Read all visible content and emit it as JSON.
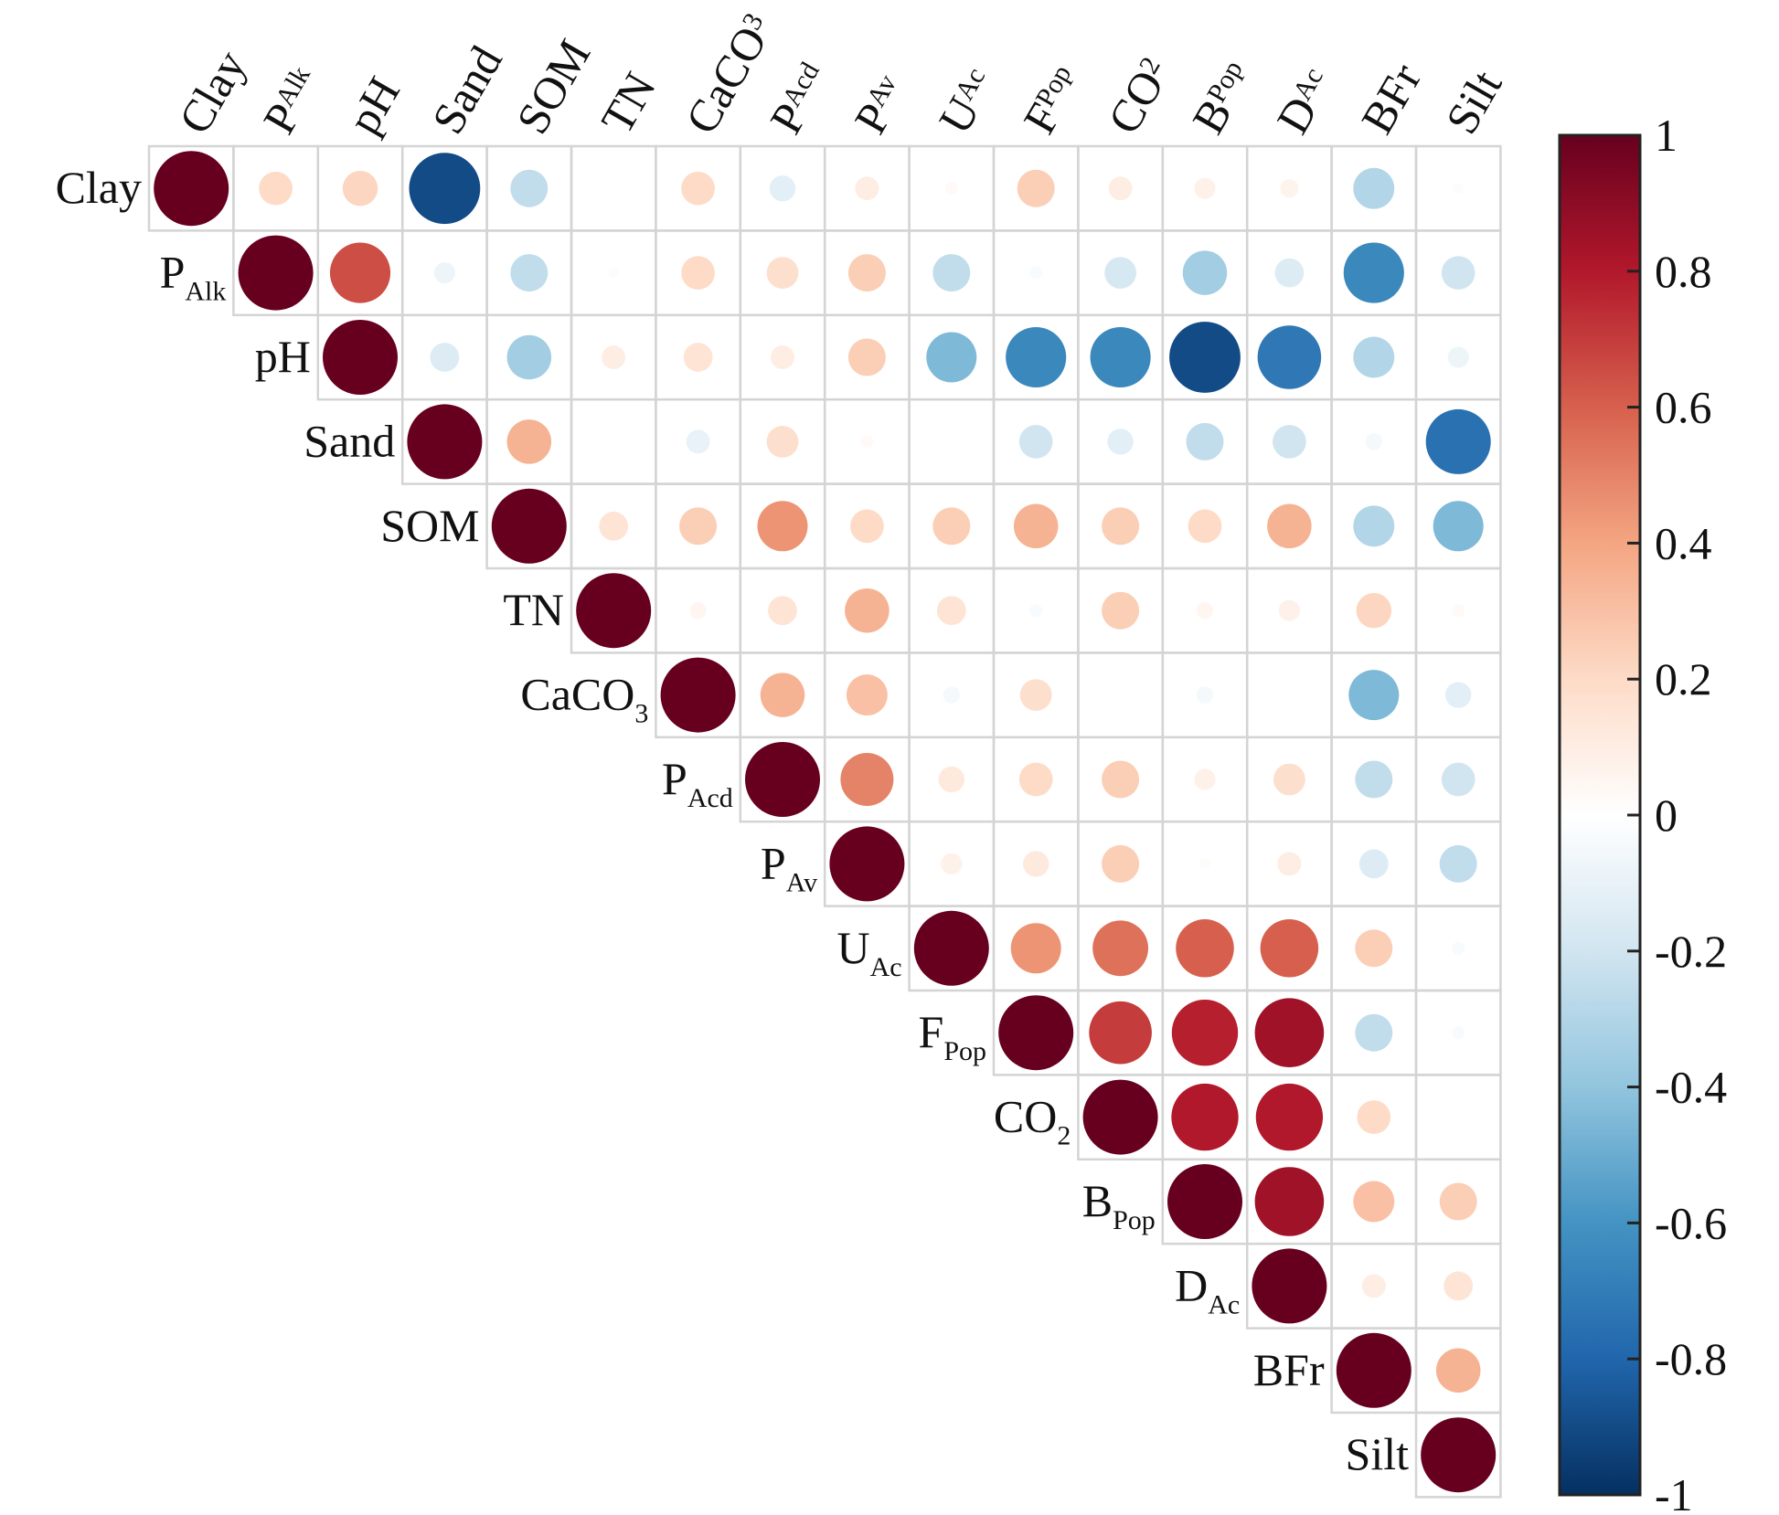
{
  "chart_data": {
    "type": "heatmap",
    "style": "correlation-circles-upper-triangle",
    "variables": [
      {
        "id": "Clay",
        "base": "Clay",
        "sub": ""
      },
      {
        "id": "PAlk",
        "base": "P",
        "sub": "Alk"
      },
      {
        "id": "pH",
        "base": "pH",
        "sub": ""
      },
      {
        "id": "Sand",
        "base": "Sand",
        "sub": ""
      },
      {
        "id": "SOM",
        "base": "SOM",
        "sub": ""
      },
      {
        "id": "TN",
        "base": "TN",
        "sub": ""
      },
      {
        "id": "CaCO3",
        "base": "CaCO",
        "sub": "3"
      },
      {
        "id": "PAcd",
        "base": "P",
        "sub": "Acd"
      },
      {
        "id": "PAv",
        "base": "P",
        "sub": "Av"
      },
      {
        "id": "UAc",
        "base": "U",
        "sub": "Ac"
      },
      {
        "id": "FPop",
        "base": "F",
        "sub": "Pop"
      },
      {
        "id": "CO2",
        "base": "CO",
        "sub": "2"
      },
      {
        "id": "BPop",
        "base": "B",
        "sub": "Pop"
      },
      {
        "id": "DAc",
        "base": "D",
        "sub": "Ac"
      },
      {
        "id": "BFr",
        "base": "BFr",
        "sub": ""
      },
      {
        "id": "Silt",
        "base": "Silt",
        "sub": ""
      }
    ],
    "matrix": [
      [
        1,
        0.2,
        0.22,
        -0.9,
        -0.25,
        0,
        0.2,
        -0.12,
        0.1,
        0.03,
        0.25,
        0.1,
        0.08,
        0.06,
        -0.3,
        -0.02
      ],
      [
        null,
        1,
        0.65,
        -0.08,
        -0.25,
        -0.02,
        0.2,
        0.18,
        0.25,
        -0.25,
        -0.03,
        -0.18,
        -0.35,
        -0.15,
        -0.65,
        -0.2
      ],
      [
        null,
        null,
        1,
        -0.15,
        -0.35,
        0.1,
        0.15,
        0.1,
        0.25,
        -0.45,
        -0.65,
        -0.65,
        -0.9,
        -0.72,
        -0.3,
        -0.08
      ],
      [
        null,
        null,
        null,
        1,
        0.35,
        0,
        -0.1,
        0.18,
        0.03,
        0,
        -0.2,
        -0.12,
        -0.25,
        -0.2,
        -0.05,
        -0.75
      ],
      [
        null,
        null,
        null,
        null,
        1,
        0.15,
        0.25,
        0.45,
        0.2,
        0.25,
        0.35,
        0.25,
        0.2,
        0.35,
        -0.3,
        -0.45
      ],
      [
        null,
        null,
        null,
        null,
        null,
        1,
        0.05,
        0.15,
        0.35,
        0.15,
        -0.03,
        0.25,
        0.05,
        0.08,
        0.22,
        0.03
      ],
      [
        null,
        null,
        null,
        null,
        null,
        null,
        1,
        0.35,
        0.3,
        -0.05,
        0.18,
        0,
        -0.05,
        0,
        -0.45,
        -0.12
      ],
      [
        null,
        null,
        null,
        null,
        null,
        null,
        null,
        1,
        0.5,
        0.12,
        0.2,
        0.25,
        0.08,
        0.18,
        -0.25,
        -0.2
      ],
      [
        null,
        null,
        null,
        null,
        null,
        null,
        null,
        null,
        1,
        0.08,
        0.12,
        0.25,
        0.02,
        0.1,
        -0.15,
        -0.25
      ],
      [
        null,
        null,
        null,
        null,
        null,
        null,
        null,
        null,
        null,
        1,
        0.45,
        0.55,
        0.6,
        0.6,
        0.25,
        -0.03
      ],
      [
        null,
        null,
        null,
        null,
        null,
        null,
        null,
        null,
        null,
        null,
        1,
        0.7,
        0.78,
        0.85,
        -0.25,
        -0.03
      ],
      [
        null,
        null,
        null,
        null,
        null,
        null,
        null,
        null,
        null,
        null,
        null,
        1,
        0.8,
        0.8,
        0.2,
        0
      ],
      [
        null,
        null,
        null,
        null,
        null,
        null,
        null,
        null,
        null,
        null,
        null,
        null,
        1,
        0.85,
        0.3,
        0.25
      ],
      [
        null,
        null,
        null,
        null,
        null,
        null,
        null,
        null,
        null,
        null,
        null,
        null,
        null,
        1,
        0.1,
        0.15
      ],
      [
        null,
        null,
        null,
        null,
        null,
        null,
        null,
        null,
        null,
        null,
        null,
        null,
        null,
        null,
        1,
        0.35
      ],
      [
        null,
        null,
        null,
        null,
        null,
        null,
        null,
        null,
        null,
        null,
        null,
        null,
        null,
        null,
        null,
        1
      ]
    ],
    "colorbar": {
      "ticks": [
        "1",
        "0.8",
        "0.6",
        "0.4",
        "0.2",
        "0",
        "-0.2",
        "-0.4",
        "-0.6",
        "-0.8",
        "-1"
      ],
      "range": [
        -1,
        1
      ],
      "colors": [
        "#67001f",
        "#b2182b",
        "#d6604d",
        "#f4a582",
        "#fddbc7",
        "#ffffff",
        "#d1e5f0",
        "#92c5de",
        "#4393c3",
        "#2166ac",
        "#053061"
      ]
    }
  }
}
